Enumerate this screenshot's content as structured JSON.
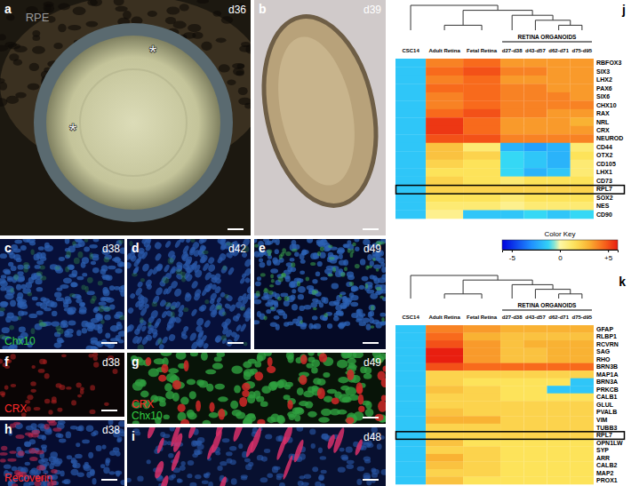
{
  "panels": [
    {
      "letter": "a",
      "day": "d36",
      "labels": [
        "RPE"
      ],
      "annotations": [
        "*",
        "*"
      ]
    },
    {
      "letter": "b",
      "day": "d39"
    },
    {
      "letter": "c",
      "day": "d38",
      "stains": [
        {
          "text": "Chx10",
          "color": "#33cc44"
        }
      ]
    },
    {
      "letter": "d",
      "day": "d42"
    },
    {
      "letter": "e",
      "day": "d49"
    },
    {
      "letter": "f",
      "day": "d38",
      "stains": [
        {
          "text": "CRX",
          "color": "#ff2a2a"
        }
      ]
    },
    {
      "letter": "g",
      "day": "d49",
      "stains": [
        {
          "text": "CRX",
          "color": "#ff2a2a"
        },
        {
          "text": "Chx10",
          "color": "#33cc44"
        }
      ]
    },
    {
      "letter": "h",
      "day": "d38",
      "stains": [
        {
          "text": "Recoverin",
          "color": "#ff2a2a"
        }
      ]
    },
    {
      "letter": "i",
      "day": "d48"
    }
  ],
  "color_key": {
    "title": "Color Key",
    "range": [
      -6,
      6
    ],
    "ticks": [
      -5,
      0,
      {
        "value": 5,
        "label": "+5"
      }
    ]
  },
  "chart_data": [
    {
      "type": "heatmap",
      "panel": "j",
      "columns": [
        "CSC14",
        "Adult Retina",
        "Fetal Retina",
        "d27-d38",
        "d43-d57",
        "d62-d71",
        "d75-d95"
      ],
      "group": {
        "label": "RETINA ORGANOIDS",
        "from": "d27-d38",
        "to": "d75-d95"
      },
      "rows": [
        "RBFOX3",
        "SIX3",
        "LHX2",
        "PAX6",
        "SIX6",
        "CHX10",
        "RAX",
        "NRL",
        "CRX",
        "NEUROD",
        "CD44",
        "OTX2",
        "CD105",
        "LHX1",
        "CD73",
        "RPL7",
        "SOX2",
        "NES",
        "CD90"
      ],
      "boxed": "RPL7",
      "cells": [
        [
          -1.5,
          4,
          4.5,
          3.5,
          3.5,
          3.5,
          3.5
        ],
        [
          -1.5,
          4.5,
          5,
          4,
          4,
          3.5,
          3.5
        ],
        [
          -1.5,
          4,
          4.5,
          3.5,
          3.5,
          3.5,
          3.5
        ],
        [
          -1.5,
          4.5,
          4.5,
          4,
          4,
          3.5,
          3.5
        ],
        [
          -1.5,
          4,
          4.5,
          4,
          4,
          4,
          3.5
        ],
        [
          -1.5,
          4,
          4.5,
          4,
          4,
          4,
          4
        ],
        [
          -1.5,
          4.5,
          5,
          4,
          4,
          3.5,
          3.5
        ],
        [
          -1.5,
          5.5,
          4.5,
          3.5,
          3.5,
          3.5,
          3
        ],
        [
          -1.5,
          5.5,
          4.5,
          3.5,
          3.5,
          3.5,
          3.5
        ],
        [
          -1.5,
          5,
          5,
          4,
          4,
          4,
          4
        ],
        [
          -1.5,
          2.5,
          1,
          -2,
          -2.5,
          -2,
          1
        ],
        [
          -1.5,
          2.5,
          2,
          -1,
          -1.5,
          -2,
          1.5
        ],
        [
          -1.5,
          2,
          1.5,
          -1,
          -1.5,
          -2,
          1
        ],
        [
          -1.5,
          1.5,
          1.5,
          -1,
          -2,
          -1.5,
          1
        ],
        [
          -1.5,
          2,
          1.5,
          1,
          1.5,
          1.5,
          1.5
        ],
        [
          -1.5,
          2,
          2,
          2,
          2,
          2,
          2
        ],
        [
          -1.5,
          1.5,
          1.5,
          1,
          1.5,
          1.5,
          1.5
        ],
        [
          -1.5,
          1,
          1,
          0.5,
          1,
          1,
          1
        ],
        [
          -1.5,
          0.5,
          -1.5,
          -1.5,
          -1,
          -1.5,
          -1
        ]
      ]
    },
    {
      "type": "heatmap",
      "panel": "k",
      "columns": [
        "CSC14",
        "Adult Retina",
        "Fetal Retina",
        "d27-d38",
        "d43-d57",
        "d62-d71",
        "d75-d95"
      ],
      "group": {
        "label": "RETINA ORGANOIDS",
        "from": "d27-d38",
        "to": "d75-d95"
      },
      "rows": [
        "GFAP",
        "RLBP1",
        "RCVRN",
        "SAG",
        "RHO",
        "BRN3B",
        "MAP1A",
        "BRN3A",
        "PRKCB",
        "CALB1",
        "GLUL",
        "PVALB",
        "VIM",
        "TUBB3",
        "RPL7",
        "OPN1LW",
        "SYP",
        "ARR",
        "CALB2",
        "MAP2",
        "PROX1"
      ],
      "boxed": "RPL7",
      "cells": [
        [
          -1.5,
          4,
          3.5,
          3,
          3,
          3,
          3
        ],
        [
          -1.5,
          4.5,
          3,
          2.5,
          2.5,
          2.5,
          2.5
        ],
        [
          -1.5,
          5,
          3.5,
          2.5,
          3,
          3,
          3
        ],
        [
          -1.5,
          6,
          3.5,
          2.5,
          2.5,
          3,
          3
        ],
        [
          -1.5,
          6,
          3.5,
          2.5,
          2.5,
          3,
          3
        ],
        [
          -1.5,
          5,
          4.5,
          4.5,
          4.5,
          4.5,
          4.5
        ],
        [
          -1.5,
          2,
          2,
          2,
          2,
          2,
          2
        ],
        [
          -1.5,
          2,
          1.5,
          1.5,
          1.5,
          1.5,
          -1.5
        ],
        [
          -1.5,
          2.5,
          2,
          1.5,
          1.5,
          -1.5,
          -1.5
        ],
        [
          -1.5,
          2,
          2,
          1.5,
          1.5,
          1.5,
          1.5
        ],
        [
          -1.5,
          2,
          2,
          2,
          2,
          2,
          2
        ],
        [
          -1.5,
          2.5,
          2,
          2,
          2,
          2,
          2
        ],
        [
          -1.5,
          3,
          3,
          2,
          2,
          2,
          2
        ],
        [
          -1.5,
          2,
          2,
          2,
          2,
          2,
          2
        ],
        [
          -1.5,
          2,
          2,
          2,
          2,
          2,
          2
        ],
        [
          -1.5,
          2.5,
          1.5,
          1.5,
          1.5,
          1.5,
          1.5
        ],
        [
          -1.5,
          2,
          2,
          1.5,
          1.5,
          1.5,
          1.5
        ],
        [
          -1.5,
          3,
          2,
          1.5,
          1.5,
          1.5,
          1.5
        ],
        [
          -1.5,
          2.5,
          2,
          1.5,
          1.5,
          1.5,
          1.5
        ],
        [
          -1.5,
          2,
          2,
          1.5,
          1.5,
          1.5,
          1.5
        ],
        [
          -1.5,
          2.5,
          1.5,
          1.5,
          1.5,
          1.5,
          1.5
        ]
      ]
    }
  ]
}
